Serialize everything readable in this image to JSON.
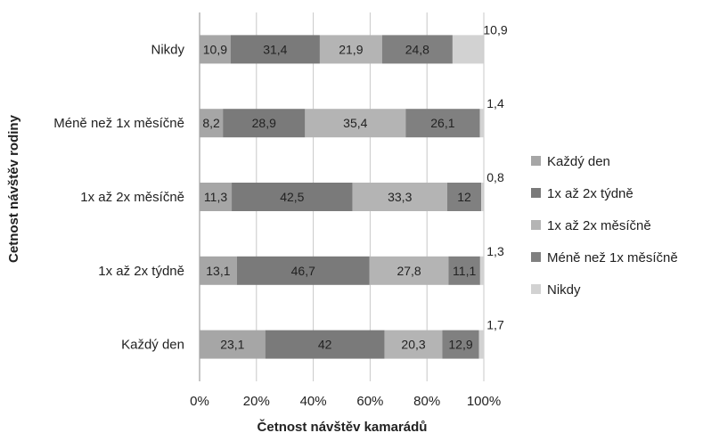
{
  "chart_data": {
    "type": "bar",
    "orientation": "horizontal",
    "stacked": "percent",
    "xlabel": "Četnost návštěv kamarádů",
    "ylabel": "Cetnost návštěv rodiny",
    "xlim": [
      0,
      100
    ],
    "x_ticks": [
      "0%",
      "20%",
      "40%",
      "60%",
      "80%",
      "100%"
    ],
    "grid": "vertical",
    "legend_position": "right",
    "categories": [
      "Každý den",
      "1x až 2x týdně",
      "1x až 2x měsíčně",
      "Méně než 1x měsíčně",
      "Nikdy"
    ],
    "series": [
      {
        "name": "Každý den",
        "color": "#a6a6a6",
        "values": [
          23.1,
          13.1,
          11.3,
          8.2,
          10.9
        ]
      },
      {
        "name": "1x až 2x týdně",
        "color": "#7a7a7a",
        "values": [
          42,
          46.7,
          42.5,
          28.9,
          31.4
        ]
      },
      {
        "name": "1x až 2x měsíčně",
        "color": "#b4b4b4",
        "values": [
          20.3,
          27.8,
          33.3,
          35.4,
          21.9
        ]
      },
      {
        "name": "Méně než 1x měsíčně",
        "color": "#808080",
        "values": [
          12.9,
          11.1,
          12,
          26.1,
          24.8
        ]
      },
      {
        "name": "Nikdy",
        "color": "#d2d2d2",
        "values": [
          1.7,
          1.3,
          0.8,
          1.4,
          10.9
        ]
      }
    ]
  }
}
